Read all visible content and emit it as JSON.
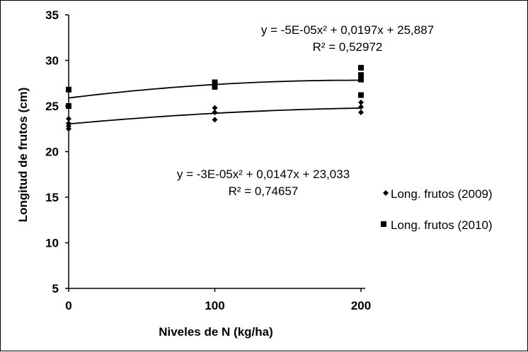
{
  "chart_data": {
    "type": "scatter",
    "xlabel": "Niveles de N (kg/ha)",
    "ylabel": "Longitud de frutos (cm)",
    "xlim": [
      0,
      200
    ],
    "ylim": [
      5,
      35
    ],
    "x_ticks": [
      0,
      100,
      200
    ],
    "x_tick_labels": [
      "0",
      "100",
      "200"
    ],
    "y_ticks": [
      5,
      10,
      15,
      20,
      25,
      30,
      35
    ],
    "y_tick_labels": [
      "5",
      "10",
      "15",
      "20",
      "25",
      "30",
      "35"
    ],
    "grid": false,
    "legend_position": "right",
    "series": [
      {
        "name": "Long. frutos (2009)",
        "marker": "diamond",
        "color": "#000000",
        "x": [
          0,
          0,
          0,
          0,
          100,
          100,
          100,
          200,
          200,
          200
        ],
        "y": [
          23.6,
          23.1,
          22.8,
          22.5,
          24.8,
          24.3,
          23.5,
          25.4,
          24.9,
          24.3
        ],
        "trendline": {
          "type": "polynomial",
          "coefficients": [
            -3e-05,
            0.0147,
            23.033
          ],
          "equation": "y = -3E-05x² + 0,0147x + 23,033",
          "r2": "R² = 0,74657"
        }
      },
      {
        "name": "Long. frutos (2010)",
        "marker": "square",
        "color": "#000000",
        "x": [
          0,
          0,
          100,
          100,
          100,
          200,
          200,
          200,
          200
        ],
        "y": [
          26.8,
          25.0,
          27.6,
          27.3,
          27.1,
          29.2,
          28.4,
          27.9,
          26.2
        ],
        "trendline": {
          "type": "polynomial",
          "coefficients": [
            -5e-05,
            0.0197,
            25.887
          ],
          "equation": "y = -5E-05x² + 0,0197x + 25,887",
          "r2": "R² = 0,52972"
        }
      }
    ]
  }
}
